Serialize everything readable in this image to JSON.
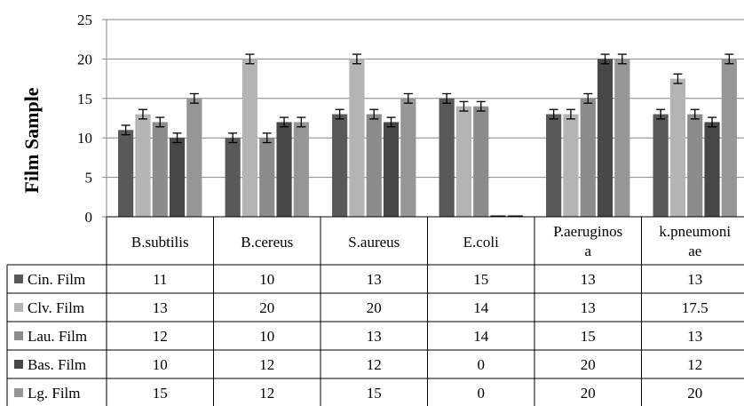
{
  "chart_data": {
    "type": "bar",
    "title": "",
    "xlabel": "",
    "ylabel": "Film Sample",
    "ylim": [
      0,
      25
    ],
    "yticks": [
      0,
      5,
      10,
      15,
      20,
      25
    ],
    "grid": true,
    "legend": "data-table",
    "error_bars": true,
    "categories": [
      "B.subtilis",
      "B.cereus",
      "S.aureus",
      "E.coli",
      "P.aeruginosa",
      "k.pneumoniae"
    ],
    "category_lines": [
      [
        "B.subtilis"
      ],
      [
        "B.cereus"
      ],
      [
        "S.aureus"
      ],
      [
        "E.coli"
      ],
      [
        "P.aeruginos",
        "a"
      ],
      [
        "k.pneumoni",
        "ae"
      ]
    ],
    "series": [
      {
        "name": "Cin. Film",
        "color": "#595959",
        "values": [
          11,
          10,
          13,
          15,
          13,
          13
        ]
      },
      {
        "name": "Clv. Film",
        "color": "#b4b4b4",
        "values": [
          13,
          20,
          20,
          14,
          13,
          17.5
        ]
      },
      {
        "name": "Lau. Film",
        "color": "#8c8c8c",
        "values": [
          12,
          10,
          13,
          14,
          15,
          13
        ]
      },
      {
        "name": "Bas. Film",
        "color": "#474747",
        "values": [
          10,
          12,
          12,
          0,
          20,
          12
        ]
      },
      {
        "name": "Lg. Film",
        "color": "#969696",
        "values": [
          15,
          12,
          15,
          0,
          20,
          20
        ]
      }
    ],
    "error": 0.6
  }
}
